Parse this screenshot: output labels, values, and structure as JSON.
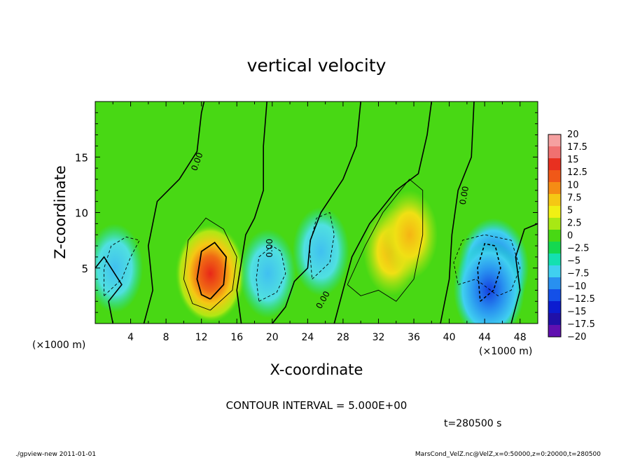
{
  "chart_data": {
    "type": "heatmap",
    "title": "vertical velocity",
    "xlabel": "X-coordinate",
    "ylabel": "Z-coordinate",
    "x_unit_left": "(×1000 m)",
    "x_unit_right": "(×1000 m)",
    "xlim": [
      0,
      50
    ],
    "ylim": [
      0,
      20
    ],
    "x_ticks": [
      "4",
      "8",
      "12",
      "16",
      "20",
      "24",
      "28",
      "32",
      "36",
      "40",
      "44",
      "48"
    ],
    "x_tick_values": [
      4,
      8,
      12,
      16,
      20,
      24,
      28,
      32,
      36,
      40,
      44,
      48
    ],
    "y_ticks": [
      "5",
      "10",
      "15"
    ],
    "y_tick_values": [
      5,
      10,
      15
    ],
    "contour_interval_text": "CONTOUR INTERVAL = 5.000E+00",
    "contour_labels": [
      "0.00",
      "0.00",
      "0.00",
      "0.00"
    ],
    "time_text": "t=280500 s",
    "colorbar": {
      "labels": [
        "20",
        "17.5",
        "15",
        "12.5",
        "10",
        "7.5",
        "5",
        "2.5",
        "0",
        "−2.5",
        "−5",
        "−7.5",
        "−10",
        "−12.5",
        "−15",
        "−17.5",
        "−20"
      ],
      "values": [
        20,
        17.5,
        15,
        12.5,
        10,
        7.5,
        5,
        2.5,
        0,
        -2.5,
        -5,
        -7.5,
        -10,
        -12.5,
        -15,
        -17.5,
        -20
      ],
      "colors": [
        "#f5a0a0",
        "#f07070",
        "#e83020",
        "#f05818",
        "#f58c14",
        "#f5c814",
        "#f0f014",
        "#a8e814",
        "#48d814",
        "#14d850",
        "#14e0b0",
        "#40d0f0",
        "#2890f0",
        "#1450e8",
        "#0c1cd0",
        "#2010a8",
        "#6010b0"
      ]
    },
    "blobs": [
      {
        "x": 13.0,
        "z": 4.5,
        "peak": 17
      },
      {
        "x": 33.5,
        "z": 6.5,
        "peak": 8
      },
      {
        "x": 35.5,
        "z": 8.0,
        "peak": 7
      },
      {
        "x": 2.2,
        "z": 5.0,
        "peak": -8
      },
      {
        "x": 19.5,
        "z": 4.5,
        "peak": -6
      },
      {
        "x": 25.5,
        "z": 6.5,
        "peak": -7
      },
      {
        "x": 45.0,
        "z": 5.0,
        "peak": -13
      },
      {
        "x": 44.5,
        "z": 3.0,
        "peak": -12
      }
    ]
  },
  "footer": {
    "left": "./gpview-new  2011-01-01",
    "right": "MarsCond_VelZ.nc@VelZ,x=0:50000,z=0:20000,t=280500"
  }
}
